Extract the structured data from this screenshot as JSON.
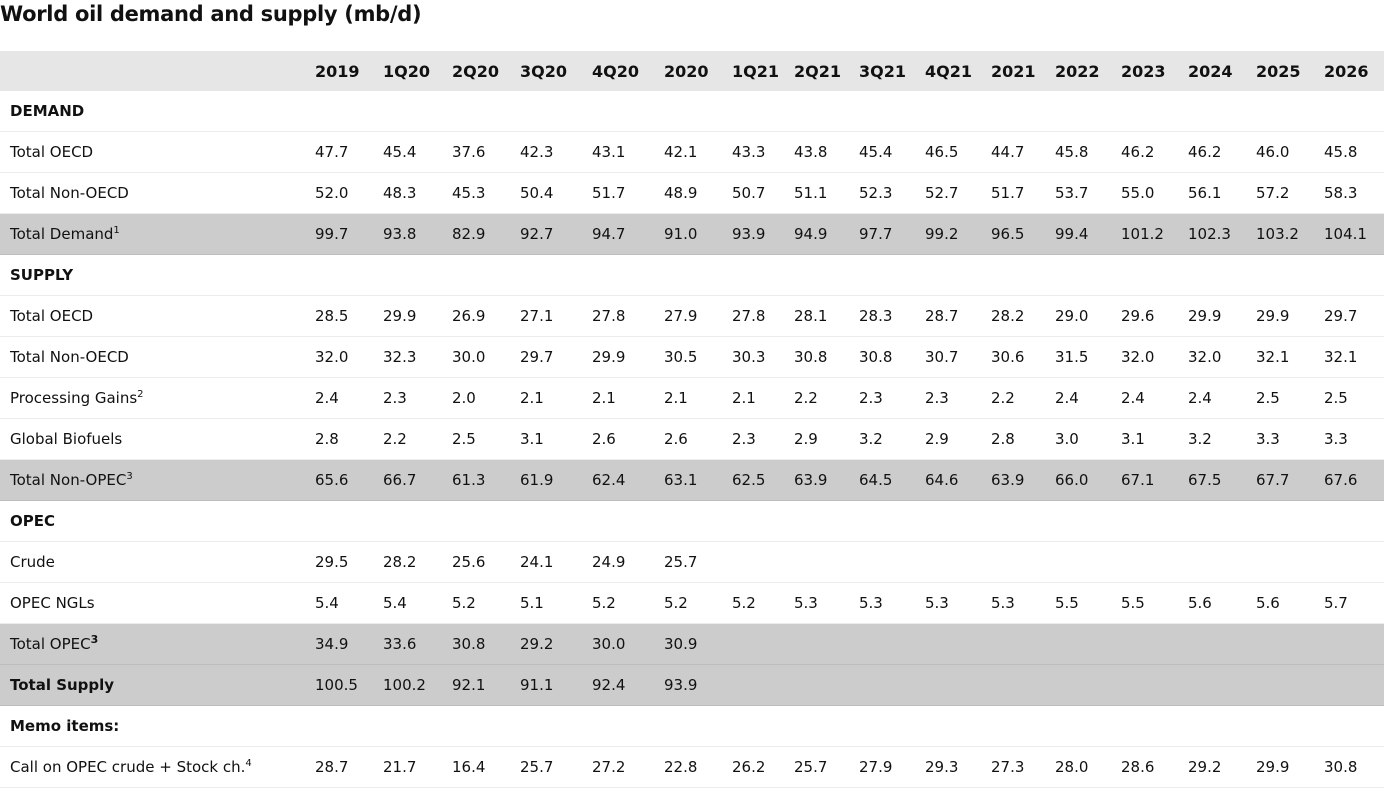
{
  "title": "World oil demand and supply (mb/d)",
  "table": {
    "header": [
      "2019",
      "1Q20",
      "2Q20",
      "3Q20",
      "4Q20",
      "2020",
      "1Q21",
      "2Q21",
      "3Q21",
      "4Q21",
      "2021",
      "2022",
      "2023",
      "2024",
      "2025",
      "2026"
    ],
    "rows": [
      {
        "kind": "section",
        "label": "DEMAND"
      },
      {
        "kind": "row",
        "label": "Total OECD",
        "values": [
          "47.7",
          "45.4",
          "37.6",
          "42.3",
          "43.1",
          "42.1",
          "43.3",
          "43.8",
          "45.4",
          "46.5",
          "44.7",
          "45.8",
          "46.2",
          "46.2",
          "46.0",
          "45.8"
        ]
      },
      {
        "kind": "row",
        "label": "Total Non-OECD",
        "values": [
          "52.0",
          "48.3",
          "45.3",
          "50.4",
          "51.7",
          "48.9",
          "50.7",
          "51.1",
          "52.3",
          "52.7",
          "51.7",
          "53.7",
          "55.0",
          "56.1",
          "57.2",
          "58.3"
        ]
      },
      {
        "kind": "total",
        "label": "Total Demand",
        "note": "1",
        "values": [
          "99.7",
          "93.8",
          "82.9",
          "92.7",
          "94.7",
          "91.0",
          "93.9",
          "94.9",
          "97.7",
          "99.2",
          "96.5",
          "99.4",
          "101.2",
          "102.3",
          "103.2",
          "104.1"
        ]
      },
      {
        "kind": "section",
        "label": "SUPPLY"
      },
      {
        "kind": "row",
        "label": "Total OECD",
        "values": [
          "28.5",
          "29.9",
          "26.9",
          "27.1",
          "27.8",
          "27.9",
          "27.8",
          "28.1",
          "28.3",
          "28.7",
          "28.2",
          "29.0",
          "29.6",
          "29.9",
          "29.9",
          "29.7"
        ]
      },
      {
        "kind": "row",
        "label": "Total Non-OECD",
        "values": [
          "32.0",
          "32.3",
          "30.0",
          "29.7",
          "29.9",
          "30.5",
          "30.3",
          "30.8",
          "30.8",
          "30.7",
          "30.6",
          "31.5",
          "32.0",
          "32.0",
          "32.1",
          "32.1"
        ]
      },
      {
        "kind": "row",
        "label": "Processing Gains",
        "note": "2",
        "values": [
          "2.4",
          "2.3",
          "2.0",
          "2.1",
          "2.1",
          "2.1",
          "2.1",
          "2.2",
          "2.3",
          "2.3",
          "2.2",
          "2.4",
          "2.4",
          "2.4",
          "2.5",
          "2.5"
        ]
      },
      {
        "kind": "row",
        "label": "Global Biofuels",
        "values": [
          "2.8",
          "2.2",
          "2.5",
          "3.1",
          "2.6",
          "2.6",
          "2.3",
          "2.9",
          "3.2",
          "2.9",
          "2.8",
          "3.0",
          "3.1",
          "3.2",
          "3.3",
          "3.3"
        ]
      },
      {
        "kind": "total",
        "label": "Total Non-OPEC",
        "note": "3",
        "values": [
          "65.6",
          "66.7",
          "61.3",
          "61.9",
          "62.4",
          "63.1",
          "62.5",
          "63.9",
          "64.5",
          "64.6",
          "63.9",
          "66.0",
          "67.1",
          "67.5",
          "67.7",
          "67.6"
        ]
      },
      {
        "kind": "section",
        "label": "OPEC"
      },
      {
        "kind": "row",
        "label": "Crude",
        "values": [
          "29.5",
          "28.2",
          "25.6",
          "24.1",
          "24.9",
          "25.7",
          null,
          null,
          null,
          null,
          null,
          null,
          null,
          null,
          null,
          null
        ]
      },
      {
        "kind": "row",
        "label": "OPEC NGLs",
        "values": [
          "5.4",
          "5.4",
          "5.2",
          "5.1",
          "5.2",
          "5.2",
          "5.2",
          "5.3",
          "5.3",
          "5.3",
          "5.3",
          "5.5",
          "5.5",
          "5.6",
          "5.6",
          "5.7"
        ]
      },
      {
        "kind": "total",
        "label": "Total OPEC",
        "note": "3",
        "bold_note": true,
        "values": [
          "34.9",
          "33.6",
          "30.8",
          "29.2",
          "30.0",
          "30.9",
          null,
          null,
          null,
          null,
          null,
          null,
          null,
          null,
          null,
          null
        ]
      },
      {
        "kind": "grand-total",
        "label": "Total Supply",
        "values": [
          "100.5",
          "100.2",
          "92.1",
          "91.1",
          "92.4",
          "93.9",
          null,
          null,
          null,
          null,
          null,
          null,
          null,
          null,
          null,
          null
        ]
      },
      {
        "kind": "section",
        "label": "Memo items:"
      },
      {
        "kind": "row",
        "label": "Call on OPEC crude + Stock ch.",
        "note": "4",
        "values": [
          "28.7",
          "21.7",
          "16.4",
          "25.7",
          "27.2",
          "22.8",
          "26.2",
          "25.7",
          "27.9",
          "29.3",
          "27.3",
          "28.0",
          "28.6",
          "29.2",
          "29.9",
          "30.8"
        ]
      }
    ]
  }
}
